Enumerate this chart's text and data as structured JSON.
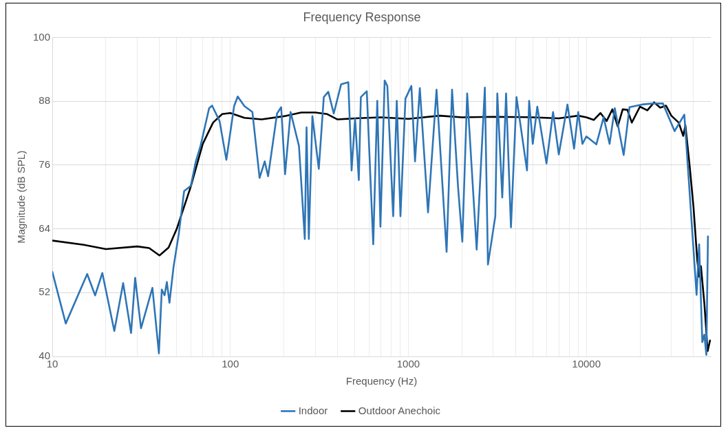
{
  "chart_data": {
    "type": "line",
    "title": "Frequency Response",
    "xlabel": "Frequency (Hz)",
    "ylabel": "Magnitude (dB SPL)",
    "log": "x",
    "xlim": [
      10,
      50000
    ],
    "ylim": [
      40,
      100
    ],
    "xticks": [
      10,
      {
        "value": 20,
        "label": null
      },
      {
        "value": 30,
        "label": null
      },
      {
        "value": 40,
        "label": null
      },
      {
        "value": 50,
        "label": null
      },
      {
        "value": 60,
        "label": null
      },
      {
        "value": 70,
        "label": null
      },
      {
        "value": 80,
        "label": null
      },
      {
        "value": 90,
        "label": null
      },
      100,
      {
        "value": 200,
        "label": null
      },
      {
        "value": 300,
        "label": null
      },
      {
        "value": 400,
        "label": null
      },
      {
        "value": 500,
        "label": null
      },
      {
        "value": 600,
        "label": null
      },
      {
        "value": 700,
        "label": null
      },
      {
        "value": 800,
        "label": null
      },
      {
        "value": 900,
        "label": null
      },
      1000,
      {
        "value": 2000,
        "label": null
      },
      {
        "value": 3000,
        "label": null
      },
      {
        "value": 4000,
        "label": null
      },
      {
        "value": 5000,
        "label": null
      },
      {
        "value": 6000,
        "label": null
      },
      {
        "value": 7000,
        "label": null
      },
      {
        "value": 8000,
        "label": null
      },
      {
        "value": 9000,
        "label": null
      },
      10000,
      {
        "value": 20000,
        "label": null
      },
      {
        "value": 30000,
        "label": null
      },
      {
        "value": 40000,
        "label": null
      }
    ],
    "yticks": [
      40,
      52,
      64,
      76,
      88,
      100
    ],
    "grid": true,
    "legend": "bottom",
    "marker": "none",
    "line_style": "solid",
    "series": [
      {
        "name": "Indoor",
        "color": "#2e75b6",
        "x": [
          10,
          11.9,
          15.7,
          17.4,
          19.1,
          22.3,
          25,
          27.7,
          29.2,
          31.5,
          36.5,
          39.7,
          41.2,
          42.7,
          44,
          45.5,
          48,
          51.3,
          55,
          60,
          64,
          68,
          76,
          79,
          87,
          95,
          105,
          110,
          120,
          133,
          146,
          156,
          163,
          183,
          193,
          203,
          218,
          243,
          262,
          268,
          276,
          289,
          314,
          335,
          355,
          381,
          419,
          460,
          480,
          502,
          527,
          541,
          584,
          635,
          669,
          697,
          736,
          762,
          822,
          861,
          903,
          963,
          1040,
          1090,
          1160,
          1290,
          1440,
          1640,
          1760,
          1900,
          2010,
          2140,
          2420,
          2690,
          2800,
          3080,
          3160,
          3370,
          3540,
          3770,
          4050,
          4640,
          4770,
          5000,
          5300,
          5970,
          6500,
          7000,
          7830,
          8530,
          9000,
          9500,
          10000,
          11380,
          12500,
          13500,
          14440,
          16200,
          17480,
          20500,
          23600,
          26900,
          31300,
          35500,
          41600,
          43000,
          44800,
          46000,
          47200,
          48200
        ],
        "values": [
          55.9,
          46.2,
          55.5,
          51.5,
          55.7,
          44.8,
          53.8,
          44.4,
          54.8,
          45.3,
          52.9,
          40.6,
          52.6,
          51.5,
          54,
          50.1,
          56.9,
          63,
          71.1,
          72.1,
          76.7,
          79.6,
          86.7,
          87.2,
          84.3,
          77,
          87.1,
          88.9,
          87.1,
          86,
          73.6,
          76.7,
          73.9,
          85.7,
          86.9,
          74.3,
          86,
          79.6,
          62.1,
          83.1,
          62.1,
          85.2,
          75.3,
          88.8,
          89.8,
          85.7,
          91.2,
          91.6,
          75,
          84.8,
          73.2,
          88.8,
          89.9,
          61.1,
          88.1,
          64.4,
          91.9,
          90.9,
          66.4,
          88.1,
          66.4,
          88.5,
          90.9,
          76.7,
          90.5,
          67.1,
          90.2,
          59.7,
          90.2,
          72.1,
          61.6,
          89.5,
          60.1,
          90.6,
          57.3,
          66.4,
          89.5,
          69.9,
          89.5,
          64.3,
          88.8,
          75,
          88.1,
          80,
          87,
          76.3,
          86,
          78,
          87.4,
          79.1,
          86,
          80,
          81.4,
          79.9,
          85,
          80,
          86.7,
          77.9,
          86.9,
          87.4,
          87.6,
          87.6,
          82.4,
          85.5,
          51.6,
          61.1,
          42.7,
          44.1,
          40.3,
          62.6
        ]
      },
      {
        "name": "Outdoor Anechoic",
        "color": "#000000",
        "x": [
          10,
          15,
          20,
          30,
          35,
          40,
          45,
          50,
          60,
          70,
          80,
          90,
          100,
          120,
          150,
          200,
          250,
          300,
          350,
          400,
          500,
          700,
          1000,
          1500,
          2000,
          3000,
          5000,
          7000,
          9000,
          10000,
          11000,
          12000,
          13000,
          14000,
          15000,
          16000,
          17000,
          18000,
          20000,
          22000,
          24000,
          26000,
          28000,
          30000,
          33000,
          35000,
          36000,
          38000,
          40000,
          42000,
          43000,
          44000,
          46000,
          48000,
          49500
        ],
        "values": [
          61.8,
          61,
          60.2,
          60.7,
          60.4,
          59,
          60.5,
          64,
          72,
          80,
          84,
          85.6,
          85.8,
          84.9,
          84.6,
          85.2,
          85.9,
          85.9,
          85.6,
          84.6,
          84.8,
          85,
          84.7,
          85.3,
          85,
          85.1,
          85,
          84.8,
          85.3,
          85,
          84.5,
          85.8,
          84.3,
          86.5,
          83.3,
          86.5,
          86.4,
          84,
          87,
          86.3,
          87.8,
          86.8,
          87.2,
          85.3,
          84,
          81.5,
          83.5,
          76,
          68,
          58,
          55,
          57,
          50,
          41,
          43
        ]
      }
    ]
  }
}
